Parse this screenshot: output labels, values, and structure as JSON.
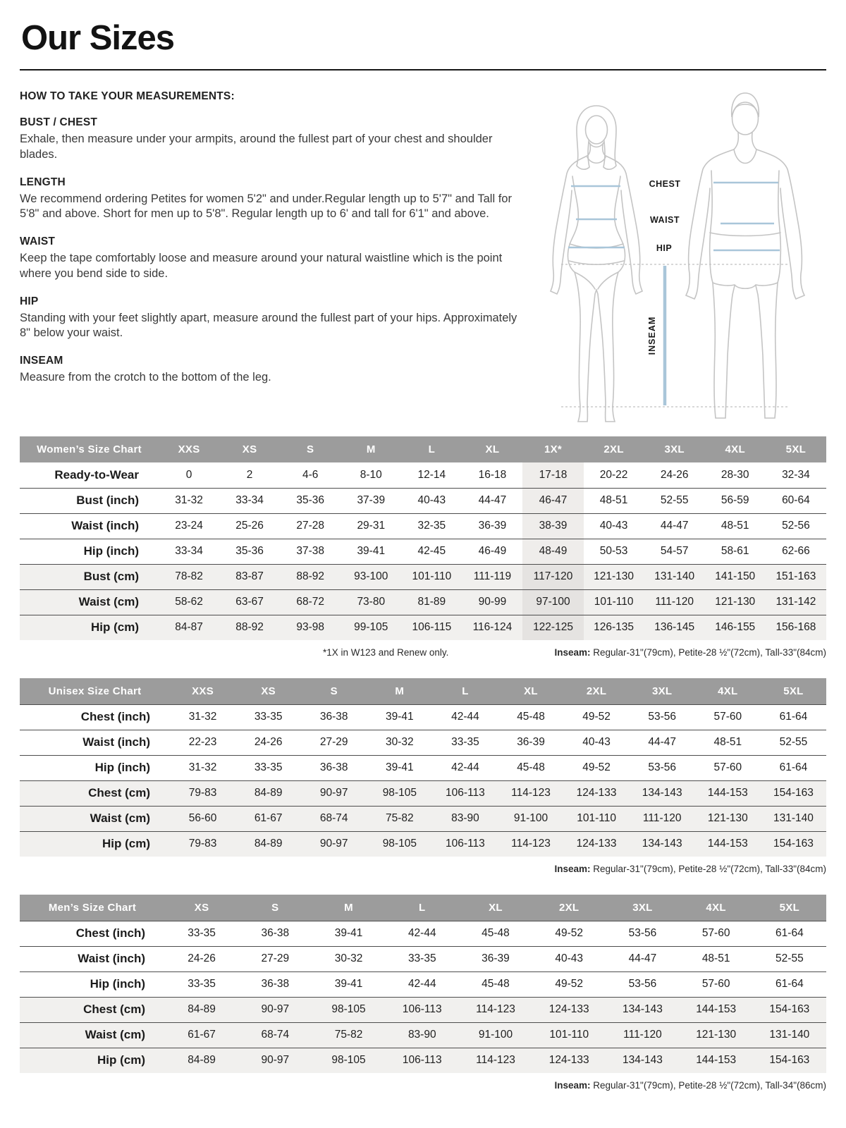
{
  "page": {
    "title": "Our Sizes",
    "how_to_heading": "HOW TO TAKE YOUR MEASUREMENTS:",
    "sections": [
      {
        "heading": "BUST / CHEST",
        "body": "Exhale, then measure under your armpits, around the fullest part of your chest and shoulder blades."
      },
      {
        "heading": "LENGTH",
        "body": "We recommend ordering Petites for women 5'2\" and under.Regular length up to 5'7\" and Tall for 5'8\" and above. Short for men up to 5'8\". Regular length up to 6' and tall for 6'1\" and above."
      },
      {
        "heading": "WAIST",
        "body": "Keep the tape comfortably loose and measure around your natural waistline which is the point where you bend side to side."
      },
      {
        "heading": "HIP",
        "body": "Standing with your feet slightly apart, measure around the fullest part of your hips. Approximately 8\" below your waist."
      },
      {
        "heading": "INSEAM",
        "body": "Measure from the crotch to the bottom of the leg."
      }
    ]
  },
  "diagram": {
    "labels": {
      "chest": "CHEST",
      "waist": "WAIST",
      "hip": "HIP",
      "inseam": "INSEAM"
    },
    "colors": {
      "outline": "#c4c4c4",
      "measure_line": "#a9c6d9",
      "dashed": "#c0c0c0",
      "label_text": "#1a1a1a"
    }
  },
  "tables": {
    "women": {
      "title": "Women’s Size Chart",
      "columns": [
        "XXS",
        "XS",
        "S",
        "M",
        "L",
        "XL",
        "1X*",
        "2XL",
        "3XL",
        "4XL",
        "5XL"
      ],
      "highlight_col": 6,
      "rows": [
        {
          "label": "Ready-to-Wear",
          "shaded": false,
          "values": [
            "0",
            "2",
            "4-6",
            "8-10",
            "12-14",
            "16-18",
            "17-18",
            "20-22",
            "24-26",
            "28-30",
            "32-34"
          ]
        },
        {
          "label": "Bust (inch)",
          "shaded": false,
          "values": [
            "31-32",
            "33-34",
            "35-36",
            "37-39",
            "40-43",
            "44-47",
            "46-47",
            "48-51",
            "52-55",
            "56-59",
            "60-64"
          ]
        },
        {
          "label": "Waist (inch)",
          "shaded": false,
          "values": [
            "23-24",
            "25-26",
            "27-28",
            "29-31",
            "32-35",
            "36-39",
            "38-39",
            "40-43",
            "44-47",
            "48-51",
            "52-56"
          ]
        },
        {
          "label": "Hip (inch)",
          "shaded": false,
          "values": [
            "33-34",
            "35-36",
            "37-38",
            "39-41",
            "42-45",
            "46-49",
            "48-49",
            "50-53",
            "54-57",
            "58-61",
            "62-66"
          ]
        },
        {
          "label": "Bust (cm)",
          "shaded": true,
          "values": [
            "78-82",
            "83-87",
            "88-92",
            "93-100",
            "101-110",
            "111-119",
            "117-120",
            "121-130",
            "131-140",
            "141-150",
            "151-163"
          ]
        },
        {
          "label": "Waist (cm)",
          "shaded": true,
          "values": [
            "58-62",
            "63-67",
            "68-72",
            "73-80",
            "81-89",
            "90-99",
            "97-100",
            "101-110",
            "111-120",
            "121-130",
            "131-142"
          ]
        },
        {
          "label": "Hip (cm)",
          "shaded": true,
          "values": [
            "84-87",
            "88-92",
            "93-98",
            "99-105",
            "106-115",
            "116-124",
            "122-125",
            "126-135",
            "136-145",
            "146-155",
            "156-168"
          ]
        }
      ],
      "footnote_left": "*1X in W123 and Renew only.",
      "footnote_label": "Inseam:",
      "footnote_text": " Regular-31\"(79cm), Petite-28 ½\"(72cm), Tall-33\"(84cm)"
    },
    "unisex": {
      "title": "Unisex Size Chart",
      "columns": [
        "XXS",
        "XS",
        "S",
        "M",
        "L",
        "XL",
        "2XL",
        "3XL",
        "4XL",
        "5XL"
      ],
      "highlight_col": -1,
      "rows": [
        {
          "label": "Chest (inch)",
          "shaded": false,
          "values": [
            "31-32",
            "33-35",
            "36-38",
            "39-41",
            "42-44",
            "45-48",
            "49-52",
            "53-56",
            "57-60",
            "61-64"
          ]
        },
        {
          "label": "Waist (inch)",
          "shaded": false,
          "values": [
            "22-23",
            "24-26",
            "27-29",
            "30-32",
            "33-35",
            "36-39",
            "40-43",
            "44-47",
            "48-51",
            "52-55"
          ]
        },
        {
          "label": "Hip (inch)",
          "shaded": false,
          "values": [
            "31-32",
            "33-35",
            "36-38",
            "39-41",
            "42-44",
            "45-48",
            "49-52",
            "53-56",
            "57-60",
            "61-64"
          ]
        },
        {
          "label": "Chest (cm)",
          "shaded": true,
          "values": [
            "79-83",
            "84-89",
            "90-97",
            "98-105",
            "106-113",
            "114-123",
            "124-133",
            "134-143",
            "144-153",
            "154-163"
          ]
        },
        {
          "label": "Waist (cm)",
          "shaded": true,
          "values": [
            "56-60",
            "61-67",
            "68-74",
            "75-82",
            "83-90",
            "91-100",
            "101-110",
            "111-120",
            "121-130",
            "131-140"
          ]
        },
        {
          "label": "Hip (cm)",
          "shaded": true,
          "values": [
            "79-83",
            "84-89",
            "90-97",
            "98-105",
            "106-113",
            "114-123",
            "124-133",
            "134-143",
            "144-153",
            "154-163"
          ]
        }
      ],
      "footnote_label": "Inseam:",
      "footnote_text": " Regular-31\"(79cm), Petite-28 ½\"(72cm), Tall-33\"(84cm)"
    },
    "men": {
      "title": "Men’s Size Chart",
      "columns": [
        "XS",
        "S",
        "M",
        "L",
        "XL",
        "2XL",
        "3XL",
        "4XL",
        "5XL"
      ],
      "highlight_col": -1,
      "rows": [
        {
          "label": "Chest (inch)",
          "shaded": false,
          "values": [
            "33-35",
            "36-38",
            "39-41",
            "42-44",
            "45-48",
            "49-52",
            "53-56",
            "57-60",
            "61-64"
          ]
        },
        {
          "label": "Waist (inch)",
          "shaded": false,
          "values": [
            "24-26",
            "27-29",
            "30-32",
            "33-35",
            "36-39",
            "40-43",
            "44-47",
            "48-51",
            "52-55"
          ]
        },
        {
          "label": "Hip (inch)",
          "shaded": false,
          "values": [
            "33-35",
            "36-38",
            "39-41",
            "42-44",
            "45-48",
            "49-52",
            "53-56",
            "57-60",
            "61-64"
          ]
        },
        {
          "label": "Chest (cm)",
          "shaded": true,
          "values": [
            "84-89",
            "90-97",
            "98-105",
            "106-113",
            "114-123",
            "124-133",
            "134-143",
            "144-153",
            "154-163"
          ]
        },
        {
          "label": "Waist (cm)",
          "shaded": true,
          "values": [
            "61-67",
            "68-74",
            "75-82",
            "83-90",
            "91-100",
            "101-110",
            "111-120",
            "121-130",
            "131-140"
          ]
        },
        {
          "label": "Hip (cm)",
          "shaded": true,
          "values": [
            "84-89",
            "90-97",
            "98-105",
            "106-113",
            "114-123",
            "124-133",
            "134-143",
            "144-153",
            "154-163"
          ]
        }
      ],
      "footnote_label": "Inseam:",
      "footnote_text": " Regular-31\"(79cm), Petite-28 ½\"(72cm), Tall-34\"(86cm)"
    }
  }
}
